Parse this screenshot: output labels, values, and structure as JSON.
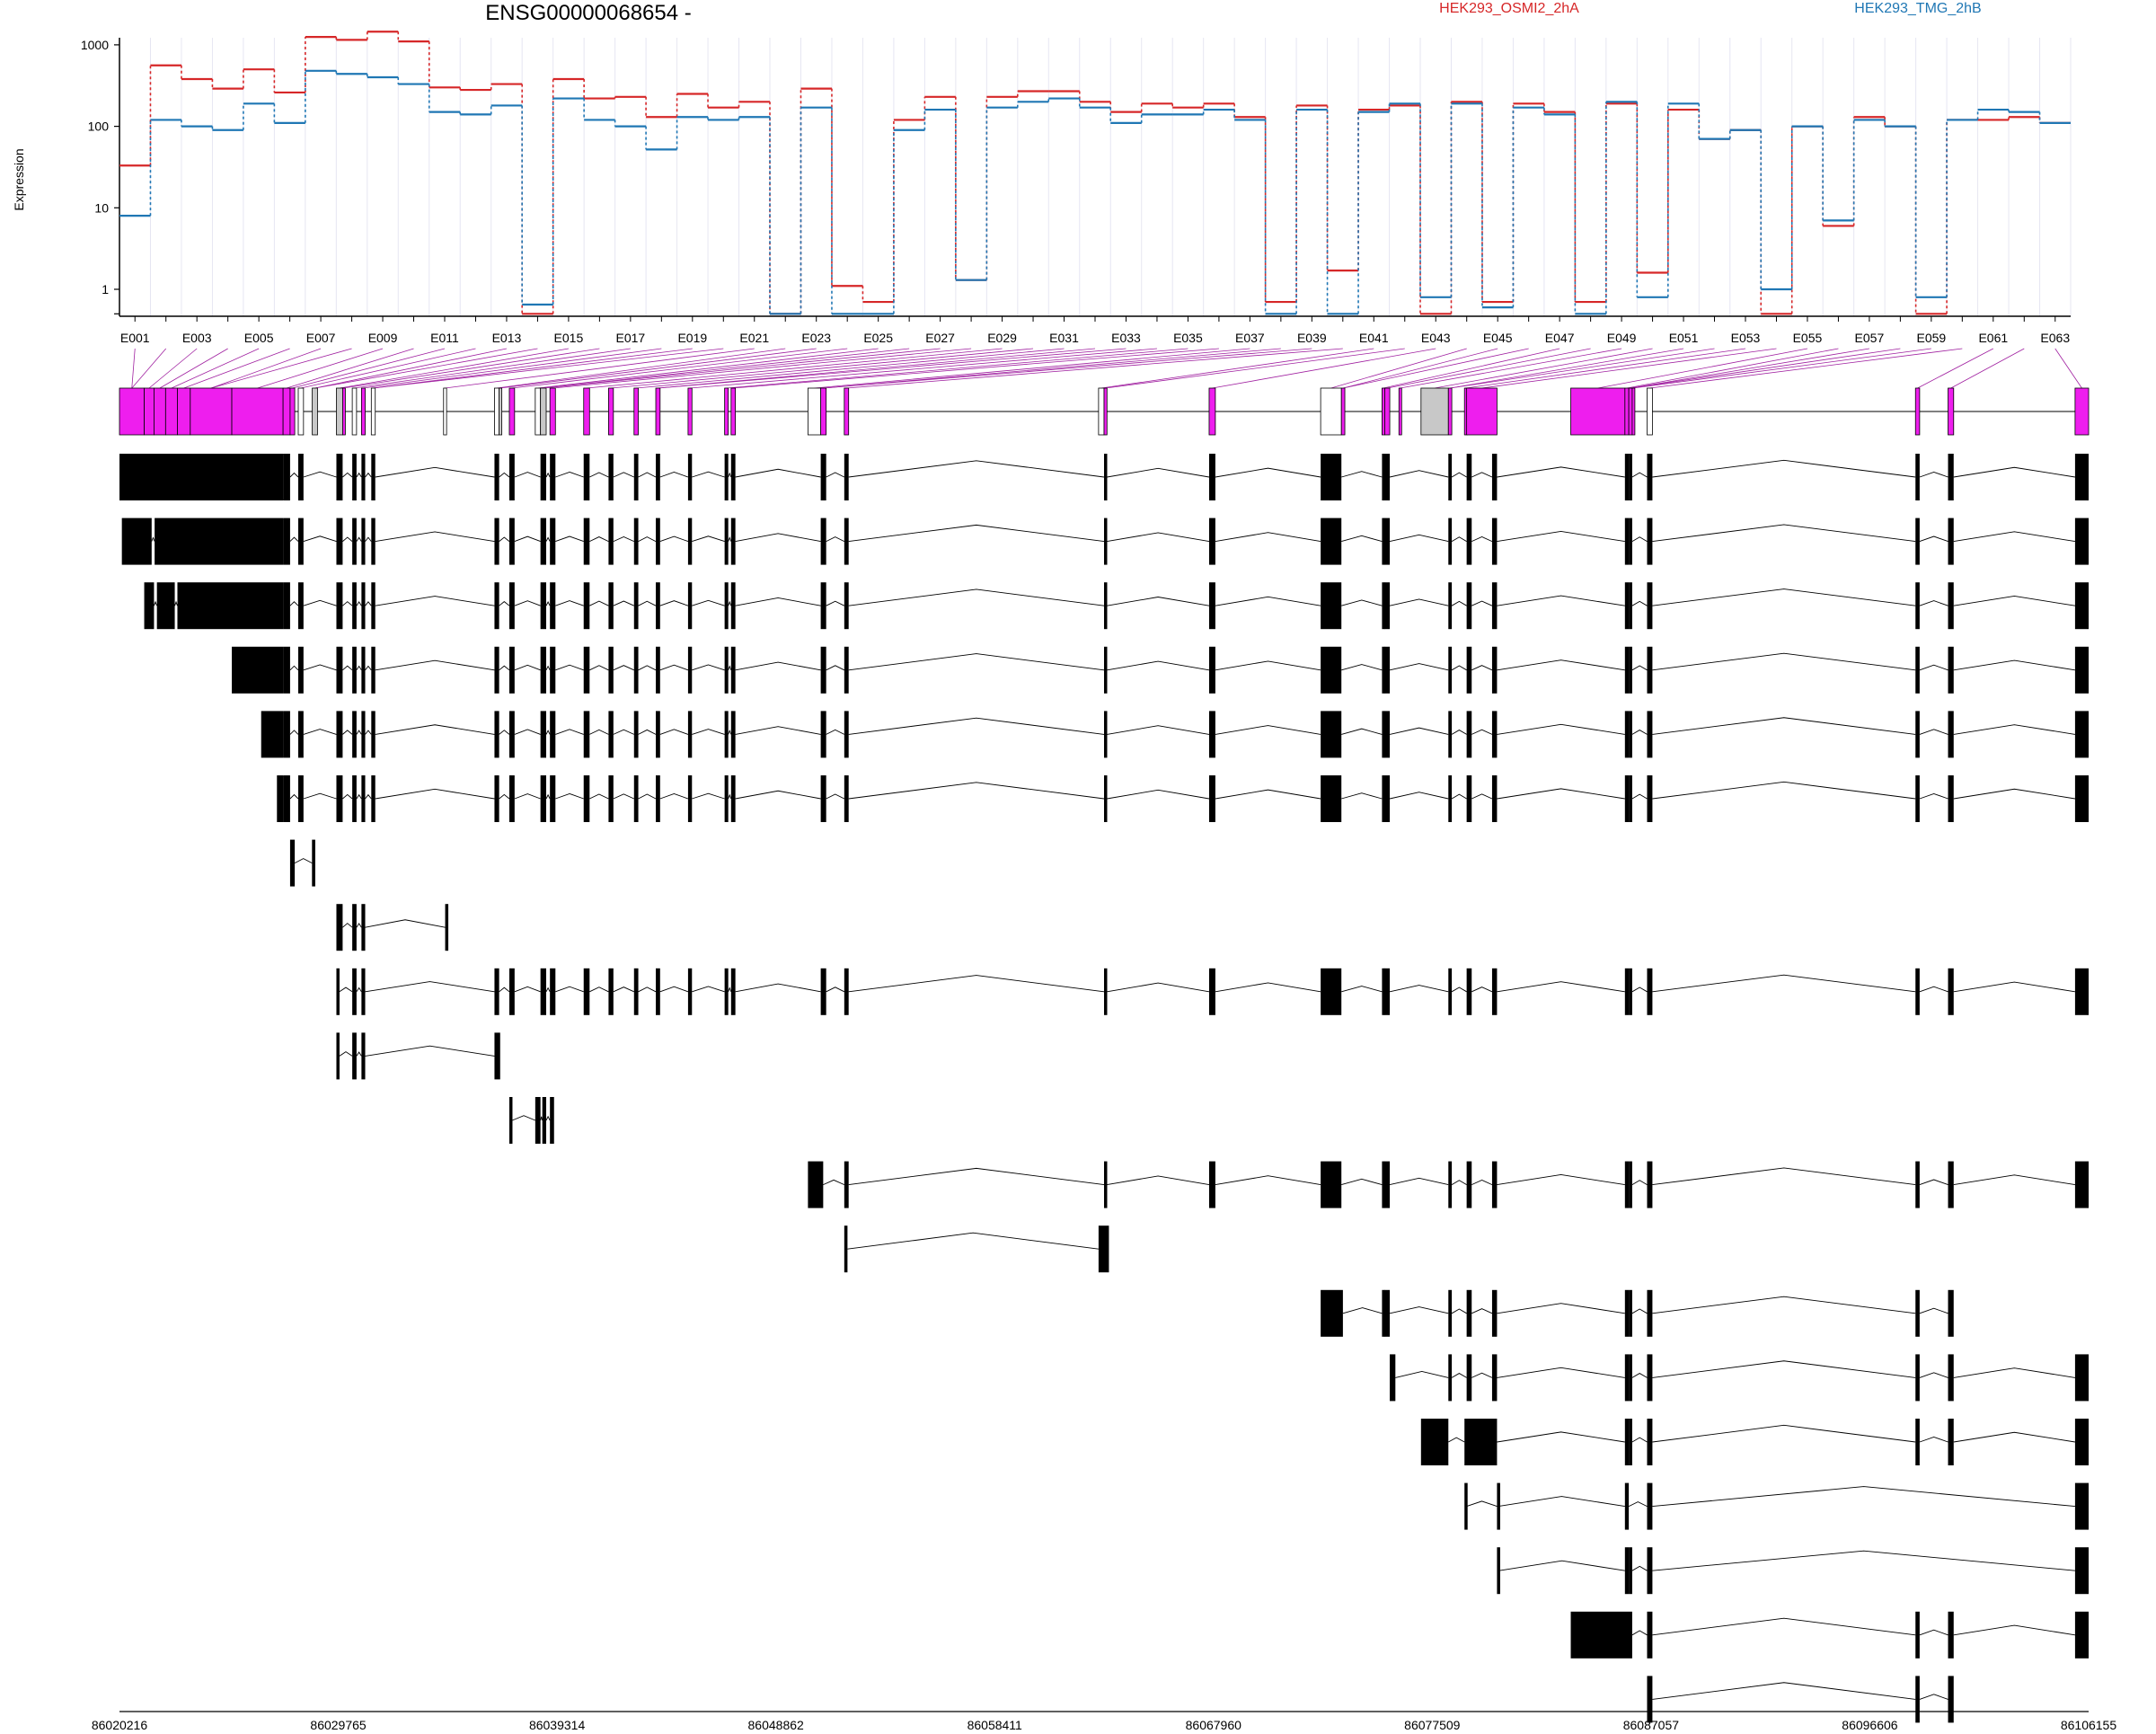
{
  "title": "ENSG00000068654 -",
  "ylabel": "Expression",
  "colors": {
    "series1": "#d62728",
    "series2": "#1f77b4",
    "exon_diff": "#ee1eee",
    "exon_grey": "#c8c8c8",
    "exon_white": "#ffffff",
    "transcript": "#000000",
    "connector": "#a020a0"
  },
  "exon_labels": [
    "E001",
    "E003",
    "E005",
    "E007",
    "E009",
    "E011",
    "E013",
    "E015",
    "E017",
    "E019",
    "E021",
    "E023",
    "E025",
    "E027",
    "E029",
    "E031",
    "E033",
    "E035",
    "E037",
    "E039",
    "E041",
    "E043",
    "E045",
    "E047",
    "E049",
    "E051",
    "E053",
    "E055",
    "E057",
    "E059",
    "E061",
    "E063"
  ],
  "chart_data": {
    "type": "line",
    "yscale": "log",
    "yticks": [
      "1",
      "10",
      "100",
      "1000"
    ],
    "ylim": [
      0.45,
      2000
    ],
    "categories": [
      "E001",
      "E002",
      "E003",
      "E004",
      "E005",
      "E006",
      "E007",
      "E008",
      "E009",
      "E010",
      "E011",
      "E012",
      "E013",
      "E014",
      "E015",
      "E016",
      "E017",
      "E018",
      "E019",
      "E020",
      "E021",
      "E022",
      "E023",
      "E024",
      "E025",
      "E026",
      "E027",
      "E028",
      "E029",
      "E030",
      "E031",
      "E032",
      "E033",
      "E034",
      "E035",
      "E036",
      "E037",
      "E038",
      "E039",
      "E040",
      "E041",
      "E042",
      "E043",
      "E044",
      "E045",
      "E046",
      "E047",
      "E048",
      "E049",
      "E050",
      "E051",
      "E052",
      "E053",
      "E054",
      "E055",
      "E056",
      "E057",
      "E058",
      "E059",
      "E060",
      "E061",
      "E062",
      "E063"
    ],
    "series": [
      {
        "name": "HEK293_OSMI2_2hA",
        "values": [
          33,
          560,
          380,
          290,
          500,
          260,
          1250,
          1150,
          1450,
          1100,
          300,
          280,
          330,
          0.5,
          380,
          220,
          230,
          130,
          250,
          170,
          200,
          0.5,
          290,
          1.1,
          0.7,
          120,
          230,
          1.3,
          230,
          270,
          270,
          200,
          150,
          190,
          170,
          190,
          130,
          0.7,
          180,
          1.7,
          160,
          180,
          0.5,
          200,
          0.7,
          190,
          150,
          0.7,
          190,
          1.6,
          160,
          70,
          90,
          0.5,
          100,
          6,
          130,
          100,
          0.5,
          120,
          120,
          130,
          110
        ]
      },
      {
        "name": "HEK293_TMG_2hB",
        "values": [
          8,
          120,
          100,
          90,
          190,
          110,
          480,
          440,
          400,
          330,
          150,
          140,
          180,
          0.65,
          220,
          120,
          100,
          52,
          130,
          120,
          130,
          0.5,
          170,
          0.5,
          0.5,
          90,
          160,
          1.3,
          170,
          200,
          220,
          170,
          110,
          140,
          140,
          160,
          120,
          0.5,
          160,
          0.5,
          150,
          190,
          0.8,
          190,
          0.6,
          170,
          140,
          0.5,
          200,
          0.8,
          190,
          70,
          90,
          1,
          100,
          7,
          120,
          100,
          0.8,
          120,
          160,
          150,
          110
        ]
      }
    ]
  },
  "genomic_axis": {
    "start": 86020216,
    "end": 86106155,
    "ticks": [
      "86020216",
      "86029765",
      "86039314",
      "86048862",
      "86058411",
      "86067960",
      "86077509",
      "86087057",
      "86096606",
      "86106155"
    ]
  }
}
